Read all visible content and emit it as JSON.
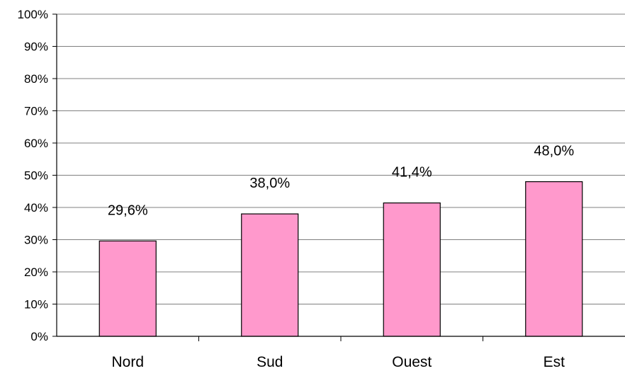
{
  "chart_data": {
    "type": "bar",
    "categories": [
      "Nord",
      "Sud",
      "Ouest",
      "Est"
    ],
    "values": [
      29.6,
      38.0,
      41.4,
      48.0
    ],
    "data_labels": [
      "29,6%",
      "38,0%",
      "41,4%",
      "48,0%"
    ],
    "ylim": [
      0,
      100
    ],
    "ytick_values": [
      0,
      10,
      20,
      30,
      40,
      50,
      60,
      70,
      80,
      90,
      100
    ],
    "ytick_labels": [
      "0%",
      "10%",
      "20%",
      "30%",
      "40%",
      "50%",
      "60%",
      "70%",
      "80%",
      "90%",
      "100%"
    ],
    "grid": true,
    "legend": "none",
    "colors": {
      "bar_fill": "#ff99cc",
      "bar_stroke": "#000000",
      "grid": "#808080",
      "axis": "#000000"
    }
  }
}
